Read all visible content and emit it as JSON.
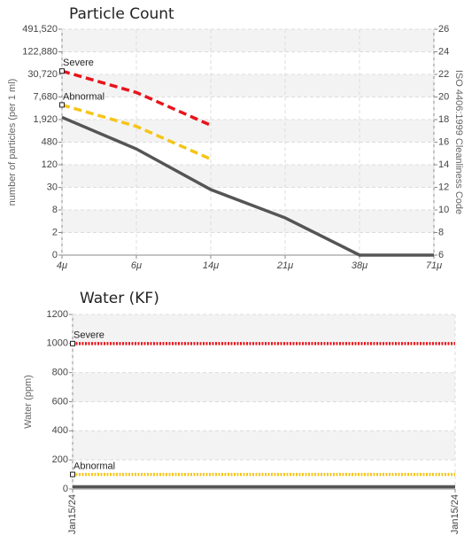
{
  "chart_data": [
    {
      "type": "line",
      "title": "Particle Count",
      "y_label": "number of particles (per 1 ml)",
      "y2_label": "ISO 4406:1999 Cleanliness Code",
      "categories": [
        "4μ",
        "6μ",
        "14μ",
        "21μ",
        "38μ",
        "71μ"
      ],
      "yticks": [
        0,
        2,
        8,
        30,
        120,
        480,
        {
          "value": 1920,
          "label": "1,920"
        },
        {
          "value": 7680,
          "label": "7,680"
        },
        {
          "value": 30720,
          "label": "30,720"
        },
        {
          "value": 122880,
          "label": "122,880"
        },
        {
          "value": 491520,
          "label": "491,520"
        }
      ],
      "y2lim": [
        6,
        26
      ],
      "y2ticks": [
        6,
        8,
        10,
        12,
        14,
        16,
        18,
        20,
        22,
        24,
        26
      ],
      "grid": true,
      "series": [
        {
          "name": "Severe",
          "color": "#e8141b",
          "dash": "dashed",
          "axis": "y2",
          "values": [
            22.3,
            20.4,
            17.5,
            null,
            null,
            null
          ]
        },
        {
          "name": "Abnormal",
          "color": "#f5c518",
          "dash": "dashed",
          "axis": "y2",
          "values": [
            19.3,
            17.4,
            14.5,
            null,
            null,
            null
          ]
        },
        {
          "color": "#555555",
          "dash": "solid",
          "axis": "y2",
          "values": [
            18.2,
            15.4,
            11.8,
            9.3,
            6,
            6
          ]
        }
      ]
    },
    {
      "type": "line",
      "title": "Water (KF)",
      "y_label": "Water (ppm)",
      "categories": [
        "Jan15/24",
        "Jan15/24"
      ],
      "ylim": [
        0,
        1200
      ],
      "yticks": [
        0,
        200,
        400,
        600,
        800,
        1000,
        1200
      ],
      "grid": true,
      "series": [
        {
          "name": "Severe",
          "color": "#e8141b",
          "dash": "dotted",
          "values": [
            1000,
            1000
          ]
        },
        {
          "name": "Abnormal",
          "color": "#f5c518",
          "dash": "dotted",
          "values": [
            100,
            100
          ]
        },
        {
          "color": "#555555",
          "dash": "solid",
          "values": [
            15,
            15
          ]
        }
      ]
    }
  ]
}
